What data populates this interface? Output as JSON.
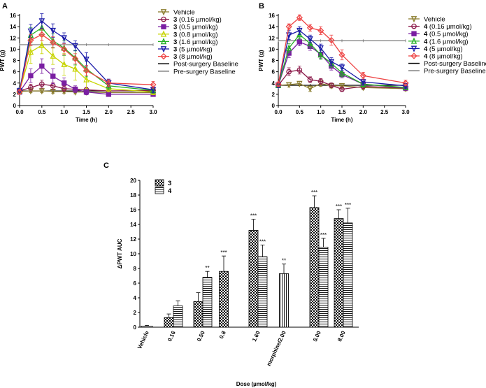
{
  "chart_data": [
    {
      "panel": "A",
      "type": "line",
      "xlabel": "Time (h)",
      "ylabel": "PWT (g)",
      "xlim": [
        0,
        3
      ],
      "ylim": [
        0,
        16
      ],
      "xticks": [
        "0.0",
        "0.5",
        "1.0",
        "1.5",
        "2.0",
        "2.5",
        "3.0"
      ],
      "yticks": [
        "0",
        "2",
        "4",
        "6",
        "8",
        "10",
        "12",
        "14",
        "16"
      ],
      "x": [
        0,
        0.25,
        0.5,
        0.75,
        1.0,
        1.25,
        1.5,
        2.0,
        3.0
      ],
      "series": [
        {
          "compound": "3",
          "dose": "Vehicle",
          "color": "#8b7d2e",
          "marker": "triangle-down",
          "values": [
            2.5,
            2.6,
            2.6,
            2.5,
            2.5,
            2.4,
            2.4,
            2.3,
            2.3
          ],
          "err": [
            0.3,
            0.3,
            0.3,
            0.3,
            0.3,
            0.3,
            0.3,
            0.3,
            0.3
          ]
        },
        {
          "compound": "3",
          "dose": "(0.16 µmol/kg)",
          "color": "#8b1a4a",
          "marker": "circle",
          "values": [
            2.6,
            3.2,
            3.8,
            3.5,
            3.0,
            2.9,
            2.8,
            2.6,
            2.7
          ],
          "err": [
            0.4,
            0.6,
            0.7,
            0.6,
            0.5,
            0.4,
            0.4,
            0.4,
            0.4
          ]
        },
        {
          "compound": "3",
          "dose": "(0.5 µmol/kg)",
          "color": "#7a1fa2",
          "marker": "square",
          "values": [
            2.4,
            5.3,
            7.0,
            5.2,
            4.0,
            2.9,
            2.4,
            2.0,
            2.0
          ],
          "err": [
            0.4,
            1.2,
            1.3,
            1.3,
            0.9,
            0.6,
            0.5,
            0.3,
            0.4
          ]
        },
        {
          "compound": "3",
          "dose": "(0.8 µmol/kg)",
          "color": "#c7d400",
          "marker": "triangle-up",
          "values": [
            2.6,
            9.5,
            10.7,
            8.8,
            7.3,
            6.5,
            4.6,
            3.0,
            2.4
          ],
          "err": [
            0.5,
            2.0,
            1.5,
            1.5,
            1.9,
            2.0,
            1.6,
            0.6,
            0.5
          ]
        },
        {
          "compound": "3",
          "dose": "(1.6 µmol/kg)",
          "color": "#22b022",
          "marker": "triangle-up",
          "values": [
            2.6,
            12.5,
            13.8,
            11.5,
            10.2,
            8.5,
            6.5,
            3.5,
            2.7
          ],
          "err": [
            0.5,
            1.3,
            1.2,
            1.2,
            1.3,
            1.3,
            1.4,
            0.7,
            0.5
          ]
        },
        {
          "compound": "3",
          "dose": "(5 µmol/kg)",
          "color": "#1a1aa8",
          "marker": "triangle-down",
          "values": [
            2.6,
            13.2,
            15.0,
            13.3,
            12.0,
            10.6,
            8.2,
            4.0,
            2.8
          ],
          "err": [
            0.5,
            1.2,
            1.3,
            1.2,
            0.9,
            0.9,
            1.2,
            0.7,
            0.5
          ]
        },
        {
          "compound": "3",
          "dose": "(8 µmol/kg)",
          "color": "#ee4444",
          "marker": "diamond",
          "values": [
            2.4,
            11.6,
            12.6,
            11.2,
            10.0,
            8.3,
            6.2,
            4.0,
            3.7
          ],
          "err": [
            0.4,
            1.0,
            1.0,
            1.0,
            1.0,
            0.9,
            0.9,
            0.6,
            0.6
          ]
        }
      ],
      "baselines": [
        {
          "label": "Post-surgery Baseline",
          "value": 2.6,
          "color": "#000000"
        },
        {
          "label": "Pre-surgery Baseline",
          "value": 10.8,
          "color": "#777777"
        }
      ]
    },
    {
      "panel": "B",
      "type": "line",
      "xlabel": "Time (h)",
      "ylabel": "PWT (g)",
      "xlim": [
        0,
        3
      ],
      "ylim": [
        0,
        16
      ],
      "xticks": [
        "0.0",
        "0.5",
        "1.0",
        "1.5",
        "2.0",
        "2.5",
        "3.0"
      ],
      "yticks": [
        "0",
        "2",
        "4",
        "6",
        "8",
        "10",
        "12",
        "14",
        "16"
      ],
      "x": [
        0,
        0.25,
        0.5,
        0.75,
        1.0,
        1.25,
        1.5,
        2.0,
        3.0
      ],
      "series": [
        {
          "compound": "4",
          "dose": "Vehicle",
          "color": "#8b7d2e",
          "marker": "triangle-down",
          "values": [
            3.6,
            3.7,
            3.9,
            3.0,
            3.9,
            3.5,
            3.5,
            3.2,
            3.0
          ],
          "err": [
            0.4,
            0.4,
            0.4,
            0.5,
            0.5,
            0.4,
            0.4,
            0.4,
            0.4
          ]
        },
        {
          "compound": "4",
          "dose": "(0.16 µmol/kg)",
          "color": "#8b1a4a",
          "marker": "circle",
          "values": [
            3.6,
            6.0,
            6.3,
            4.6,
            4.3,
            3.6,
            2.9,
            3.4,
            3.1
          ],
          "err": [
            0.4,
            0.7,
            0.7,
            0.5,
            0.5,
            0.4,
            0.4,
            0.4,
            0.4
          ]
        },
        {
          "compound": "4",
          "dose": "(0.5 µmol/kg)",
          "color": "#7a1fa2",
          "marker": "square",
          "values": [
            3.6,
            9.3,
            11.3,
            10.5,
            9.1,
            7.0,
            5.5,
            3.8,
            3.1
          ],
          "err": [
            0.4,
            0.8,
            0.7,
            0.7,
            0.7,
            0.7,
            0.6,
            0.5,
            0.4
          ]
        },
        {
          "compound": "4",
          "dose": "(1.6 µmol/kg)",
          "color": "#22b022",
          "marker": "triangle-up",
          "values": [
            3.6,
            10.2,
            12.6,
            11.0,
            9.0,
            7.5,
            5.8,
            3.8,
            3.2
          ],
          "err": [
            0.4,
            0.8,
            0.8,
            0.8,
            0.8,
            0.7,
            0.7,
            0.5,
            0.4
          ]
        },
        {
          "compound": "4",
          "dose": "(5 µmol/kg)",
          "color": "#1a1aa8",
          "marker": "triangle-down",
          "values": [
            3.6,
            12.5,
            13.3,
            11.8,
            10.2,
            7.8,
            6.8,
            4.2,
            3.5
          ],
          "err": [
            0.4,
            0.8,
            0.7,
            0.7,
            0.7,
            0.7,
            0.6,
            0.5,
            0.4
          ]
        },
        {
          "compound": "4",
          "dose": "(8 µmol/kg)",
          "color": "#ee4444",
          "marker": "diamond",
          "values": [
            3.8,
            14.0,
            15.6,
            13.8,
            13.3,
            11.6,
            9.0,
            5.3,
            4.0
          ],
          "err": [
            0.4,
            0.5,
            0.5,
            0.6,
            0.7,
            0.9,
            0.9,
            0.6,
            0.5
          ]
        }
      ],
      "baselines": [
        {
          "label": "Post-surgery Baseline",
          "value": 3.6,
          "color": "#000000"
        },
        {
          "label": "Pre-surgery Baseline",
          "value": 11.5,
          "color": "#777777"
        }
      ]
    },
    {
      "panel": "C",
      "type": "bar",
      "xlabel": "Dose (µmol/kg)",
      "ylabel": "ΔPWT AUC",
      "ylim": [
        0,
        20
      ],
      "yticks": [
        "0",
        "2",
        "4",
        "6",
        "8",
        "10",
        "12",
        "14",
        "16",
        "18",
        "20"
      ],
      "categories": [
        "Vehicle",
        "0.16",
        "0.50",
        "0.8",
        "1.60",
        "morphine/2.00",
        "5.00",
        "8.00"
      ],
      "legend": [
        "3",
        "4"
      ],
      "bars": [
        {
          "cat": 0,
          "kind": "plain",
          "value": 0.15,
          "err": 0.1,
          "sig": ""
        },
        {
          "cat": 1,
          "kind": "3",
          "value": 1.3,
          "err": 0.5,
          "sig": ""
        },
        {
          "cat": 1,
          "kind": "4",
          "value": 2.9,
          "err": 0.7,
          "sig": ""
        },
        {
          "cat": 2,
          "kind": "3",
          "value": 3.5,
          "err": 1.2,
          "sig": ""
        },
        {
          "cat": 2,
          "kind": "4",
          "value": 6.8,
          "err": 0.8,
          "sig": "**"
        },
        {
          "cat": 3,
          "kind": "3",
          "value": 7.6,
          "err": 2.1,
          "sig": "***"
        },
        {
          "cat": 4,
          "kind": "3",
          "value": 13.2,
          "err": 1.5,
          "sig": "***"
        },
        {
          "cat": 4,
          "kind": "4",
          "value": 9.6,
          "err": 1.6,
          "sig": "***"
        },
        {
          "cat": 5,
          "kind": "morphine",
          "value": 7.3,
          "err": 1.3,
          "sig": "**"
        },
        {
          "cat": 6,
          "kind": "3",
          "value": 16.3,
          "err": 1.6,
          "sig": "***"
        },
        {
          "cat": 6,
          "kind": "4",
          "value": 10.9,
          "err": 1.2,
          "sig": "***"
        },
        {
          "cat": 7,
          "kind": "3",
          "value": 14.8,
          "err": 1.2,
          "sig": "***"
        },
        {
          "cat": 7,
          "kind": "4",
          "value": 14.2,
          "err": 2.0,
          "sig": "***"
        }
      ]
    }
  ]
}
